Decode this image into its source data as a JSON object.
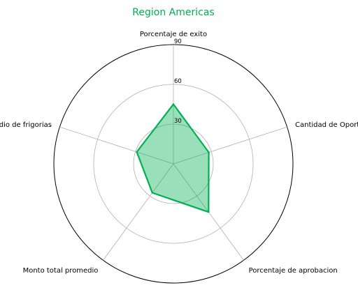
{
  "chart_data": {
    "type": "radar",
    "title": "Region Americas",
    "title_color": "#00b050",
    "series_color": "#00b050",
    "fill_color": "#00b050",
    "fill_opacity": 0.4,
    "grid": true,
    "rlim": [
      0,
      90
    ],
    "rticks": [
      30,
      60,
      90
    ],
    "rtick_labels": [
      "30",
      "60",
      "90"
    ],
    "categories": [
      "Porcentaje de exito",
      "Cantidad de Oportunidades",
      "Porcentaje de aprobacion",
      "Monto total promedio",
      "Promedio de frigorias"
    ],
    "values": [
      45,
      28,
      45,
      27,
      29
    ]
  }
}
